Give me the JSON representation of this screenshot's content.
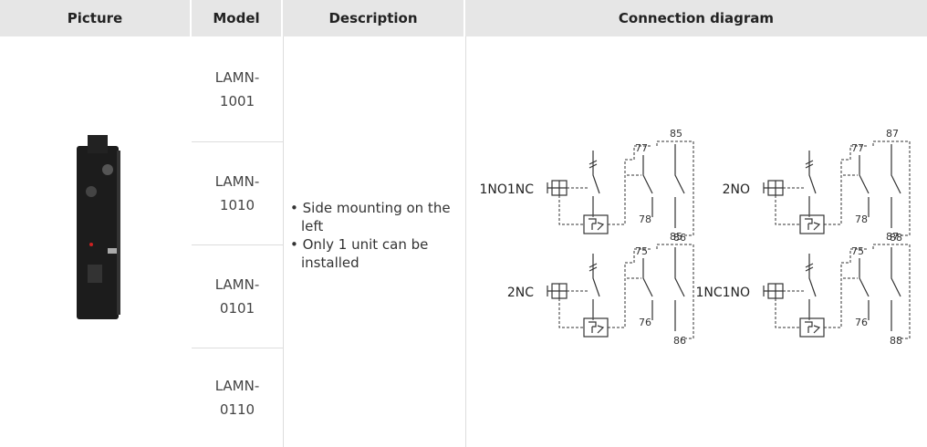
{
  "table": {
    "headers": [
      "Picture",
      "Model",
      "Description",
      "Connection diagram"
    ],
    "models": [
      "LAMN-1001",
      "LAMN-1010",
      "LAMN-0101",
      "LAMN-0110"
    ],
    "description": [
      "Side mounting on the left",
      "Only 1 unit can be installed"
    ],
    "diagrams": [
      {
        "name": "1NO1NC",
        "labels": [
          "77",
          "85",
          "78",
          "86"
        ]
      },
      {
        "name": "2NO",
        "labels": [
          "77",
          "87",
          "78",
          "88"
        ]
      },
      {
        "name": "2NC",
        "labels": [
          "75",
          "85",
          "76",
          "86"
        ]
      },
      {
        "name": "1NC1NO",
        "labels": [
          "75",
          "87",
          "76",
          "88"
        ]
      }
    ]
  }
}
